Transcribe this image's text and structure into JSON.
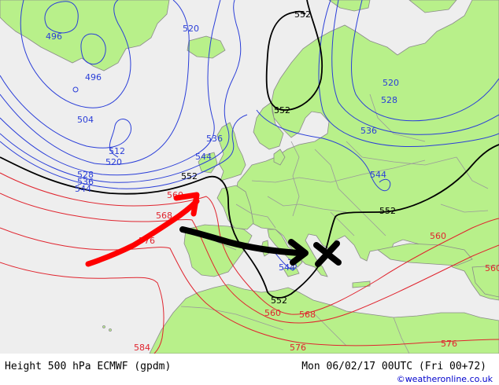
{
  "footer": {
    "title": "Height 500 hPa ECMWF (gpdm)",
    "valid": "Mon 06/02/17 00UTC (Fri 00+72)",
    "credit": "©weatheronline.co.uk"
  },
  "colors": {
    "sea": "#eeeeee",
    "land": "#b8f08a",
    "border": "#9a9a9a",
    "low_contour": "#2a3ed8",
    "mid_contour": "#000000",
    "high_contour": "#e0242e",
    "annotation_red": "#ff0000",
    "annotation_black": "#000000"
  },
  "contour_labels": {
    "l496a": "496",
    "l496b": "496",
    "l504": "504",
    "l512": "512",
    "l520a": "520",
    "l520b": "520",
    "l520c": "520",
    "l528a": "528",
    "l528b": "528",
    "l536a": "536",
    "l536b": "536",
    "l536c": "536",
    "l544a": "544",
    "l544b": "544",
    "l544c": "544",
    "l544d": "544",
    "l552a": "552",
    "l552b": "552",
    "l552c": "552",
    "l552d": "552",
    "l552e": "552",
    "l560a": "560",
    "l560b": "560",
    "l560c": "560",
    "l560d": "560",
    "l568a": "568",
    "l568b": "568",
    "l576a": "576",
    "l576b": "576",
    "l576c": "576",
    "l584": "584"
  },
  "annotations": [
    {
      "kind": "arrow",
      "color": "red"
    },
    {
      "kind": "arrow",
      "color": "black"
    },
    {
      "kind": "cross",
      "color": "black"
    }
  ]
}
